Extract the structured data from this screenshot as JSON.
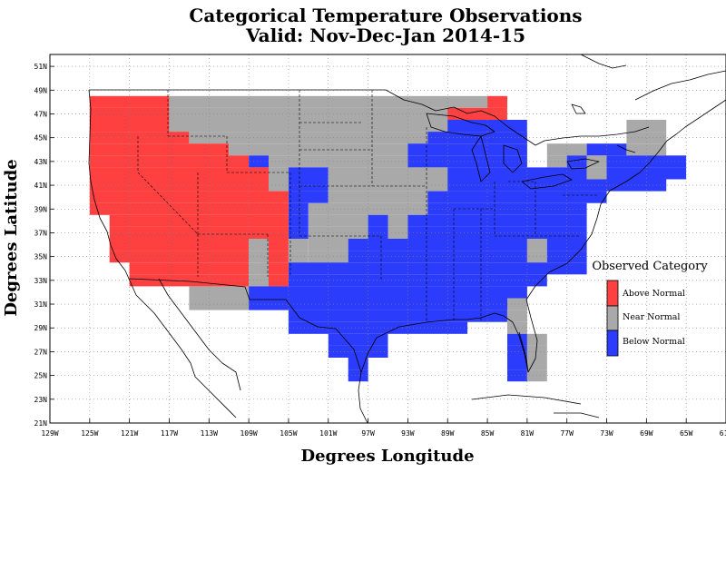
{
  "map": {
    "title_line1": "Categorical Temperature Observations",
    "title_line2": "Valid: Nov-Dec-Jan 2014-15",
    "x_axis_title": "Degrees Longitude",
    "y_axis_title": "Degrees Latitude",
    "lon_range": [
      -129,
      -61
    ],
    "lat_range": [
      21,
      52
    ],
    "lon_ticks": [
      {
        "value": -129,
        "label": "129W"
      },
      {
        "value": -125,
        "label": "125W"
      },
      {
        "value": -121,
        "label": "121W"
      },
      {
        "value": -117,
        "label": "117W"
      },
      {
        "value": -113,
        "label": "113W"
      },
      {
        "value": -109,
        "label": "109W"
      },
      {
        "value": -105,
        "label": "105W"
      },
      {
        "value": -101,
        "label": "101W"
      },
      {
        "value": -97,
        "label": "97W"
      },
      {
        "value": -93,
        "label": "93W"
      },
      {
        "value": -89,
        "label": "89W"
      },
      {
        "value": -85,
        "label": "85W"
      },
      {
        "value": -81,
        "label": "81W"
      },
      {
        "value": -77,
        "label": "77W"
      },
      {
        "value": -73,
        "label": "73W"
      },
      {
        "value": -69,
        "label": "69W"
      },
      {
        "value": -65,
        "label": "65W"
      },
      {
        "value": -61,
        "label": "61W"
      }
    ],
    "lat_ticks": [
      {
        "value": 21,
        "label": "21N"
      },
      {
        "value": 23,
        "label": "23N"
      },
      {
        "value": 25,
        "label": "25N"
      },
      {
        "value": 27,
        "label": "27N"
      },
      {
        "value": 29,
        "label": "29N"
      },
      {
        "value": 31,
        "label": "31N"
      },
      {
        "value": 33,
        "label": "33N"
      },
      {
        "value": 35,
        "label": "35N"
      },
      {
        "value": 37,
        "label": "37N"
      },
      {
        "value": 39,
        "label": "39N"
      },
      {
        "value": 41,
        "label": "41N"
      },
      {
        "value": 43,
        "label": "43N"
      },
      {
        "value": 45,
        "label": "45N"
      },
      {
        "value": 47,
        "label": "47N"
      },
      {
        "value": 49,
        "label": "49N"
      },
      {
        "value": 51,
        "label": "51N"
      }
    ],
    "gridlines": true
  },
  "legend": {
    "title": "Observed Category",
    "placement": "right",
    "items": [
      {
        "label": "Above Normal",
        "color": "#ff4040"
      },
      {
        "label": "Near Normal",
        "color": "#a9a9a9"
      },
      {
        "label": "Below Normal",
        "color": "#2c3cfc"
      }
    ]
  },
  "colors": {
    "A": "#ff4040",
    "N": "#a9a9a9",
    "B": "#2c3cfc"
  },
  "grid_cells": {
    "cell_size_deg": 2,
    "rows": [
      {
        "lat": [
          48,
          49
        ],
        "cells": [
          [
            -125,
            -117,
            "A"
          ],
          [
            -117,
            -85,
            "N"
          ],
          [
            -85,
            -83,
            "A"
          ]
        ]
      },
      {
        "lat": [
          47,
          48
        ],
        "cells": [
          [
            -125,
            -117,
            "A"
          ],
          [
            -117,
            -89,
            "N"
          ],
          [
            -89,
            -83,
            "A"
          ]
        ]
      },
      {
        "lat": [
          46,
          47
        ],
        "cells": [
          [
            -125,
            -117,
            "A"
          ],
          [
            -117,
            -89,
            "N"
          ],
          [
            -89,
            -81,
            "B"
          ],
          [
            -71,
            -67,
            "N"
          ]
        ]
      },
      {
        "lat": [
          45,
          46
        ],
        "cells": [
          [
            -125,
            -115,
            "A"
          ],
          [
            -115,
            -91,
            "N"
          ],
          [
            -91,
            -81,
            "B"
          ],
          [
            -71,
            -67,
            "N"
          ]
        ]
      },
      {
        "lat": [
          44,
          45
        ],
        "cells": [
          [
            -125,
            -111,
            "A"
          ],
          [
            -111,
            -93,
            "N"
          ],
          [
            -93,
            -81,
            "B"
          ],
          [
            -79,
            -75,
            "N"
          ],
          [
            -75,
            -71,
            "B"
          ],
          [
            -71,
            -67,
            "N"
          ]
        ]
      },
      {
        "lat": [
          43,
          44
        ],
        "cells": [
          [
            -125,
            -109,
            "A"
          ],
          [
            -109,
            -107,
            "B"
          ],
          [
            -107,
            -93,
            "N"
          ],
          [
            -93,
            -81,
            "B"
          ],
          [
            -79,
            -77,
            "N"
          ],
          [
            -77,
            -75,
            "B"
          ],
          [
            -75,
            -73,
            "N"
          ],
          [
            -73,
            -65,
            "B"
          ]
        ]
      },
      {
        "lat": [
          42,
          43
        ],
        "cells": [
          [
            -125,
            -107,
            "A"
          ],
          [
            -107,
            -105,
            "N"
          ],
          [
            -105,
            -101,
            "B"
          ],
          [
            -101,
            -89,
            "N"
          ],
          [
            -89,
            -75,
            "B"
          ],
          [
            -75,
            -73,
            "N"
          ],
          [
            -73,
            -65,
            "B"
          ]
        ]
      },
      {
        "lat": [
          41,
          42
        ],
        "cells": [
          [
            -125,
            -107,
            "A"
          ],
          [
            -107,
            -105,
            "N"
          ],
          [
            -105,
            -101,
            "B"
          ],
          [
            -101,
            -89,
            "N"
          ],
          [
            -89,
            -67,
            "B"
          ]
        ]
      },
      {
        "lat": [
          40,
          41
        ],
        "cells": [
          [
            -125,
            -105,
            "A"
          ],
          [
            -105,
            -101,
            "B"
          ],
          [
            -101,
            -91,
            "N"
          ],
          [
            -91,
            -73,
            "B"
          ]
        ]
      },
      {
        "lat": [
          39,
          40
        ],
        "cells": [
          [
            -125,
            -105,
            "A"
          ],
          [
            -105,
            -103,
            "B"
          ],
          [
            -103,
            -91,
            "N"
          ],
          [
            -91,
            -75,
            "B"
          ]
        ]
      },
      {
        "lat": [
          38,
          39
        ],
        "cells": [
          [
            -123,
            -105,
            "A"
          ],
          [
            -105,
            -103,
            "B"
          ],
          [
            -103,
            -97,
            "N"
          ],
          [
            -97,
            -95,
            "B"
          ],
          [
            -95,
            -93,
            "N"
          ],
          [
            -93,
            -75,
            "B"
          ]
        ]
      },
      {
        "lat": [
          37,
          38
        ],
        "cells": [
          [
            -123,
            -105,
            "A"
          ],
          [
            -105,
            -103,
            "B"
          ],
          [
            -103,
            -97,
            "N"
          ],
          [
            -97,
            -95,
            "B"
          ],
          [
            -95,
            -93,
            "N"
          ],
          [
            -93,
            -75,
            "B"
          ]
        ]
      },
      {
        "lat": [
          36,
          37
        ],
        "cells": [
          [
            -123,
            -109,
            "A"
          ],
          [
            -109,
            -107,
            "N"
          ],
          [
            -107,
            -105,
            "A"
          ],
          [
            -105,
            -103,
            "N"
          ],
          [
            -103,
            -99,
            "N"
          ],
          [
            -99,
            -81,
            "B"
          ],
          [
            -81,
            -79,
            "N"
          ],
          [
            -79,
            -75,
            "B"
          ]
        ]
      },
      {
        "lat": [
          35,
          36
        ],
        "cells": [
          [
            -123,
            -109,
            "A"
          ],
          [
            -109,
            -107,
            "N"
          ],
          [
            -107,
            -105,
            "A"
          ],
          [
            -105,
            -103,
            "N"
          ],
          [
            -103,
            -99,
            "N"
          ],
          [
            -99,
            -81,
            "B"
          ],
          [
            -81,
            -79,
            "N"
          ],
          [
            -79,
            -75,
            "B"
          ]
        ]
      },
      {
        "lat": [
          34,
          35
        ],
        "cells": [
          [
            -121,
            -109,
            "A"
          ],
          [
            -109,
            -107,
            "N"
          ],
          [
            -107,
            -105,
            "A"
          ],
          [
            -105,
            -75,
            "B"
          ]
        ]
      },
      {
        "lat": [
          33,
          34
        ],
        "cells": [
          [
            -121,
            -109,
            "A"
          ],
          [
            -109,
            -107,
            "N"
          ],
          [
            -107,
            -105,
            "A"
          ],
          [
            -105,
            -79,
            "B"
          ]
        ]
      },
      {
        "lat": [
          32,
          33
        ],
        "cells": [
          [
            -115,
            -109,
            "N"
          ],
          [
            -109,
            -81,
            "B"
          ]
        ]
      },
      {
        "lat": [
          31,
          32
        ],
        "cells": [
          [
            -115,
            -109,
            "N"
          ],
          [
            -109,
            -83,
            "B"
          ],
          [
            -83,
            -81,
            "N"
          ]
        ]
      },
      {
        "lat": [
          30,
          31
        ],
        "cells": [
          [
            -105,
            -83,
            "B"
          ],
          [
            -83,
            -81,
            "N"
          ]
        ]
      },
      {
        "lat": [
          29,
          30
        ],
        "cells": [
          [
            -105,
            -87,
            "B"
          ],
          [
            -83,
            -81,
            "N"
          ]
        ]
      },
      {
        "lat": [
          28,
          29
        ],
        "cells": [
          [
            -101,
            -95,
            "B"
          ],
          [
            -83,
            -81,
            "B"
          ],
          [
            -81,
            -79,
            "N"
          ]
        ]
      },
      {
        "lat": [
          27,
          28
        ],
        "cells": [
          [
            -101,
            -95,
            "B"
          ],
          [
            -83,
            -81,
            "B"
          ],
          [
            -81,
            -79,
            "N"
          ]
        ]
      },
      {
        "lat": [
          26,
          27
        ],
        "cells": [
          [
            -99,
            -97,
            "B"
          ],
          [
            -83,
            -81,
            "B"
          ],
          [
            -81,
            -79,
            "N"
          ]
        ]
      },
      {
        "lat": [
          25,
          26
        ],
        "cells": [
          [
            -99,
            -97,
            "B"
          ],
          [
            -83,
            -81,
            "B"
          ],
          [
            -81,
            -79,
            "N"
          ]
        ]
      }
    ]
  }
}
